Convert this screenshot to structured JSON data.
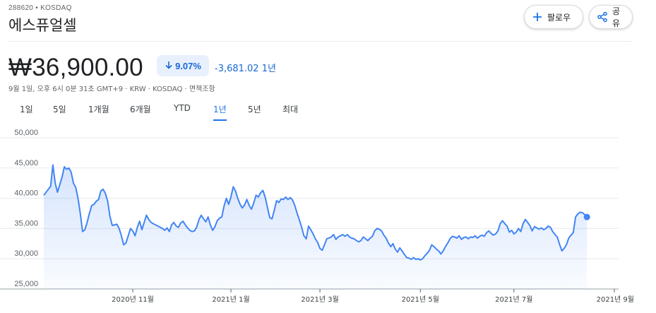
{
  "header": {
    "ticker": "288620 • KOSDAQ",
    "company": "에스퓨얼셀",
    "follow_label": "팔로우",
    "share_label": "공유"
  },
  "quote": {
    "price": "₩36,900.00",
    "percent": "9.07%",
    "change": "-3,681.02 1년",
    "meta": "9월 1일, 오후 6시 0분 31초 GMT+9 · KRW · KOSDAQ · 면책조항"
  },
  "tabs": [
    {
      "label": "1일",
      "active": false
    },
    {
      "label": "5일",
      "active": false
    },
    {
      "label": "1개월",
      "active": false
    },
    {
      "label": "6개월",
      "active": false
    },
    {
      "label": "YTD",
      "active": false
    },
    {
      "label": "1년",
      "active": true
    },
    {
      "label": "5년",
      "active": false
    },
    {
      "label": "최대",
      "active": false
    }
  ],
  "colors": {
    "line": "#4285f4",
    "negative": "#1967d2",
    "badge_bg": "#e8f0fe",
    "grid": "#e8eaed"
  },
  "icons": {
    "follow": "plus-icon",
    "share": "share-icon",
    "down": "arrow-down-icon"
  },
  "chart_data": {
    "type": "area",
    "ylim": [
      25000,
      50000
    ],
    "yticks": [
      "50,000",
      "45,000",
      "40,000",
      "35,000",
      "30,000",
      "25,000"
    ],
    "ytick_values": [
      50000,
      45000,
      40000,
      35000,
      30000,
      25000
    ],
    "xlim_index": [
      0,
      250
    ],
    "xticks": [
      {
        "label": "2020년 11월",
        "index": 39
      },
      {
        "label": "2021년 1월",
        "index": 82
      },
      {
        "label": "2021년 3월",
        "index": 121
      },
      {
        "label": "2021년 5월",
        "index": 165
      },
      {
        "label": "2021년 7월",
        "index": 206
      },
      {
        "label": "2021년 9월",
        "index": 250
      }
    ],
    "points": [
      [
        0,
        40500
      ],
      [
        2,
        41500
      ],
      [
        3,
        42000
      ],
      [
        4,
        45500
      ],
      [
        5,
        42500
      ],
      [
        6,
        41000
      ],
      [
        8,
        43500
      ],
      [
        9,
        45200
      ],
      [
        10,
        44800
      ],
      [
        11,
        45000
      ],
      [
        12,
        44300
      ],
      [
        13,
        42500
      ],
      [
        14,
        41800
      ],
      [
        15,
        40000
      ],
      [
        16,
        37500
      ],
      [
        17,
        34500
      ],
      [
        18,
        34800
      ],
      [
        19,
        36000
      ],
      [
        20,
        37500
      ],
      [
        21,
        38800
      ],
      [
        22,
        39000
      ],
      [
        23,
        39500
      ],
      [
        24,
        39800
      ],
      [
        25,
        41200
      ],
      [
        26,
        41500
      ],
      [
        27,
        40800
      ],
      [
        28,
        39500
      ],
      [
        29,
        37000
      ],
      [
        30,
        35500
      ],
      [
        32,
        35700
      ],
      [
        33,
        35000
      ],
      [
        34,
        33800
      ],
      [
        35,
        32300
      ],
      [
        36,
        32600
      ],
      [
        37,
        33800
      ],
      [
        38,
        35000
      ],
      [
        39,
        34600
      ],
      [
        40,
        33800
      ],
      [
        41,
        35200
      ],
      [
        42,
        36200
      ],
      [
        43,
        34800
      ],
      [
        44,
        36000
      ],
      [
        45,
        37200
      ],
      [
        46,
        36500
      ],
      [
        47,
        36000
      ],
      [
        48,
        35800
      ],
      [
        50,
        35400
      ],
      [
        52,
        35000
      ],
      [
        53,
        34700
      ],
      [
        54,
        35100
      ],
      [
        55,
        34500
      ],
      [
        56,
        35600
      ],
      [
        57,
        36000
      ],
      [
        58,
        35400
      ],
      [
        59,
        35200
      ],
      [
        60,
        35900
      ],
      [
        61,
        36200
      ],
      [
        62,
        35600
      ],
      [
        63,
        35100
      ],
      [
        64,
        34700
      ],
      [
        65,
        34500
      ],
      [
        66,
        34600
      ],
      [
        67,
        35200
      ],
      [
        68,
        36500
      ],
      [
        69,
        37200
      ],
      [
        70,
        36600
      ],
      [
        71,
        36100
      ],
      [
        72,
        36900
      ],
      [
        73,
        35600
      ],
      [
        74,
        34700
      ],
      [
        75,
        35300
      ],
      [
        76,
        36300
      ],
      [
        77,
        36700
      ],
      [
        78,
        36900
      ],
      [
        79,
        38700
      ],
      [
        80,
        40000
      ],
      [
        81,
        39000
      ],
      [
        82,
        40200
      ],
      [
        83,
        41900
      ],
      [
        84,
        41200
      ],
      [
        85,
        40000
      ],
      [
        86,
        39000
      ],
      [
        87,
        38400
      ],
      [
        88,
        38900
      ],
      [
        89,
        39800
      ],
      [
        90,
        38800
      ],
      [
        91,
        38200
      ],
      [
        92,
        39200
      ],
      [
        93,
        40500
      ],
      [
        94,
        40200
      ],
      [
        95,
        40900
      ],
      [
        96,
        41300
      ],
      [
        97,
        40200
      ],
      [
        98,
        38500
      ],
      [
        99,
        36800
      ],
      [
        100,
        36600
      ],
      [
        101,
        38000
      ],
      [
        102,
        39600
      ],
      [
        103,
        39300
      ],
      [
        104,
        39900
      ],
      [
        105,
        39800
      ],
      [
        106,
        40200
      ],
      [
        107,
        39800
      ],
      [
        108,
        40100
      ],
      [
        109,
        39700
      ],
      [
        110,
        38800
      ],
      [
        111,
        37500
      ],
      [
        112,
        36400
      ],
      [
        113,
        35200
      ],
      [
        114,
        33800
      ],
      [
        115,
        33300
      ],
      [
        116,
        35400
      ],
      [
        117,
        34800
      ],
      [
        118,
        34100
      ],
      [
        119,
        33300
      ],
      [
        120,
        32700
      ],
      [
        121,
        31700
      ],
      [
        122,
        31400
      ],
      [
        123,
        32300
      ],
      [
        124,
        33300
      ],
      [
        126,
        33600
      ],
      [
        127,
        34000
      ],
      [
        128,
        33200
      ],
      [
        129,
        33600
      ],
      [
        130,
        33800
      ],
      [
        131,
        34000
      ],
      [
        132,
        33700
      ],
      [
        133,
        34000
      ],
      [
        134,
        33600
      ],
      [
        135,
        33400
      ],
      [
        136,
        33300
      ],
      [
        137,
        33000
      ],
      [
        138,
        32800
      ],
      [
        139,
        33000
      ],
      [
        140,
        33600
      ],
      [
        141,
        33300
      ],
      [
        142,
        33000
      ],
      [
        143,
        33400
      ],
      [
        144,
        33700
      ],
      [
        145,
        34600
      ],
      [
        146,
        35000
      ],
      [
        147,
        34900
      ],
      [
        148,
        34600
      ],
      [
        149,
        33900
      ],
      [
        150,
        33400
      ],
      [
        151,
        32600
      ],
      [
        152,
        32000
      ],
      [
        153,
        32500
      ],
      [
        154,
        31600
      ],
      [
        155,
        31100
      ],
      [
        156,
        31800
      ],
      [
        157,
        31300
      ],
      [
        158,
        30700
      ],
      [
        159,
        30200
      ],
      [
        160,
        30100
      ],
      [
        161,
        29900
      ],
      [
        162,
        30200
      ],
      [
        163,
        29900
      ],
      [
        164,
        30000
      ],
      [
        165,
        29800
      ],
      [
        166,
        30000
      ],
      [
        167,
        30500
      ],
      [
        168,
        30900
      ],
      [
        169,
        31400
      ],
      [
        170,
        32300
      ],
      [
        171,
        32000
      ],
      [
        172,
        31600
      ],
      [
        173,
        31300
      ],
      [
        174,
        30800
      ],
      [
        175,
        31300
      ],
      [
        176,
        32000
      ],
      [
        177,
        32600
      ],
      [
        178,
        33300
      ],
      [
        179,
        33700
      ],
      [
        180,
        33600
      ],
      [
        181,
        33400
      ],
      [
        182,
        33800
      ],
      [
        183,
        33200
      ],
      [
        184,
        33500
      ],
      [
        185,
        33600
      ],
      [
        186,
        33300
      ],
      [
        187,
        33600
      ],
      [
        188,
        33500
      ],
      [
        189,
        33800
      ],
      [
        190,
        33400
      ],
      [
        191,
        33700
      ],
      [
        192,
        33900
      ],
      [
        193,
        33700
      ],
      [
        194,
        34300
      ],
      [
        195,
        34600
      ],
      [
        196,
        34200
      ],
      [
        197,
        33900
      ],
      [
        198,
        34100
      ],
      [
        199,
        34600
      ],
      [
        200,
        35800
      ],
      [
        201,
        36300
      ],
      [
        202,
        35800
      ],
      [
        203,
        35400
      ],
      [
        204,
        34400
      ],
      [
        205,
        34700
      ],
      [
        206,
        34100
      ],
      [
        207,
        34400
      ],
      [
        208,
        35000
      ],
      [
        209,
        34500
      ],
      [
        210,
        35800
      ],
      [
        211,
        36500
      ],
      [
        212,
        36000
      ],
      [
        213,
        35500
      ],
      [
        214,
        34600
      ],
      [
        215,
        35300
      ],
      [
        216,
        35100
      ],
      [
        217,
        34900
      ],
      [
        218,
        35100
      ],
      [
        219,
        34800
      ],
      [
        220,
        35000
      ],
      [
        221,
        35400
      ],
      [
        222,
        35200
      ],
      [
        223,
        34500
      ],
      [
        224,
        34000
      ],
      [
        225,
        33600
      ],
      [
        226,
        32400
      ],
      [
        227,
        31300
      ],
      [
        228,
        31700
      ],
      [
        229,
        32300
      ],
      [
        230,
        33400
      ],
      [
        231,
        33900
      ],
      [
        232,
        34300
      ],
      [
        233,
        36900
      ],
      [
        234,
        37400
      ],
      [
        235,
        37700
      ],
      [
        236,
        37600
      ],
      [
        237,
        37300
      ],
      [
        238,
        36900
      ]
    ]
  }
}
